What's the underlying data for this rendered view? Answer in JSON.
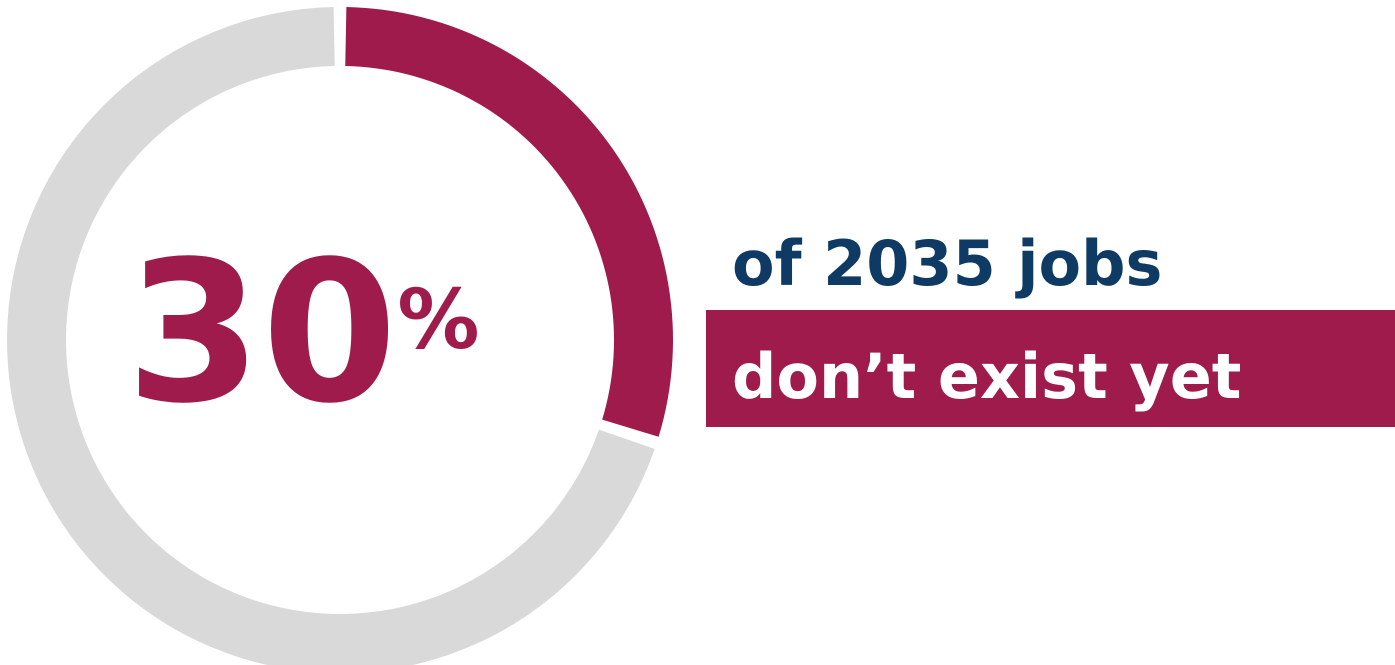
{
  "chart_data": {
    "type": "pie",
    "style": "donut",
    "values": [
      30,
      70
    ],
    "highlight_value": 30,
    "remainder_value": 70,
    "start": "top",
    "direction": "clockwise"
  },
  "stat": {
    "number": "30",
    "unit": "%"
  },
  "caption": {
    "line1": "of 2035 jobs",
    "line2": "don’t exist yet"
  },
  "colors": {
    "accent": "#9E1B4C",
    "track": "#D9D9D9",
    "navy": "#0E3A63",
    "white": "#FFFFFF",
    "background": "#FFFFFF"
  }
}
